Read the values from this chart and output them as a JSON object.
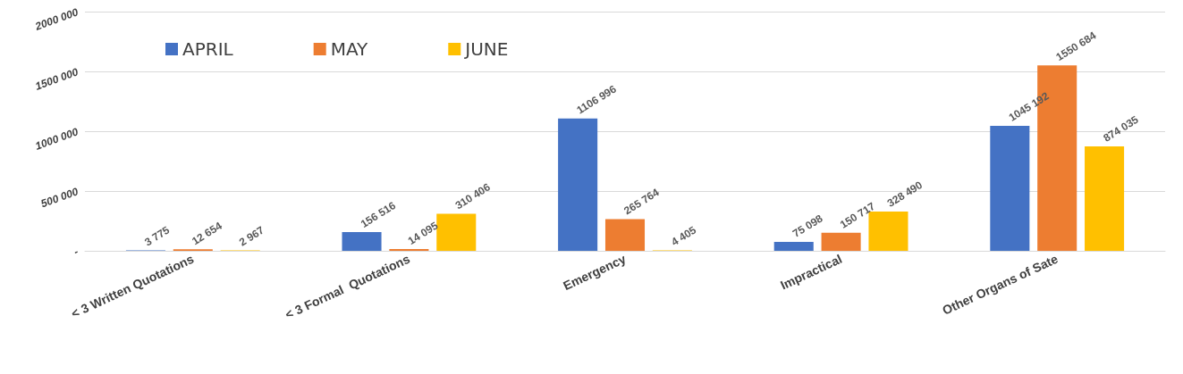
{
  "chart_data": {
    "type": "bar",
    "categories": [
      "< 3 Written Quotations",
      "< 3 Formal  Quotations",
      "Emergency",
      "Impractical",
      "Other Organs of Sate"
    ],
    "series": [
      {
        "name": "APRIL",
        "color": "#4472c4",
        "values": [
          3775,
          156516,
          1106996,
          75098,
          1045192
        ],
        "value_labels": [
          "3 775",
          "156 516",
          "1106 996",
          "75 098",
          "1045 192"
        ]
      },
      {
        "name": "MAY",
        "color": "#ed7d31",
        "values": [
          12654,
          14095,
          265764,
          150717,
          1550684
        ],
        "value_labels": [
          "12 654",
          "14 095",
          "265 764",
          "150 717",
          "1550 684"
        ]
      },
      {
        "name": "JUNE",
        "color": "#ffc000",
        "values": [
          2967,
          310406,
          4405,
          328490,
          874035
        ],
        "value_labels": [
          "2 967",
          "310 406",
          "4 405",
          "328 490",
          "874 035"
        ]
      }
    ],
    "ylim": [
      0,
      2000000
    ],
    "yticks": [
      {
        "value": 0,
        "label": "-"
      },
      {
        "value": 500000,
        "label": "500 000"
      },
      {
        "value": 1000000,
        "label": "1000 000"
      },
      {
        "value": 1500000,
        "label": "1500 000"
      },
      {
        "value": 2000000,
        "label": "2000 000"
      }
    ],
    "grid": "y",
    "legend": "top left"
  }
}
